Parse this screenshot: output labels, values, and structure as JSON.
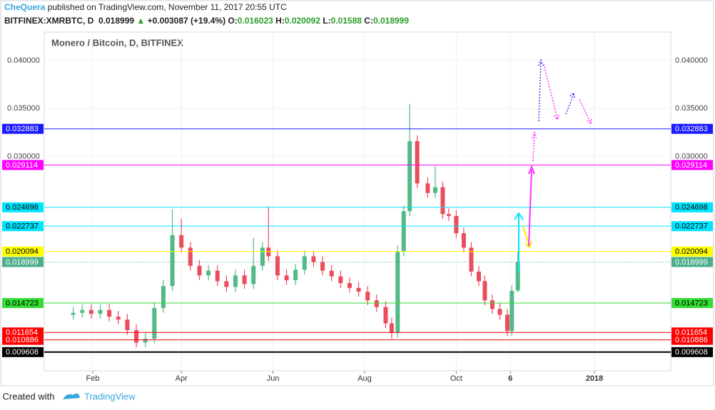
{
  "header": {
    "author": "CheQuera",
    "published": "published on TradingView.com, November 11, 2017 20:55 UTC",
    "symbol": "BITFINEX:XMRBTC, D",
    "change": "+0.003087 (+19.4%)",
    "o_label": "O:",
    "h_label": "H:",
    "l_label": "L:",
    "c_label": "C:"
  },
  "chart_data": {
    "type": "candlestick",
    "title": "Monero / Bitcoin, D, BITFINEX",
    "up_color": "#53b987",
    "down_color": "#eb4d5c",
    "x": [
      18,
      24,
      30,
      36,
      42,
      48,
      54,
      60,
      66,
      72,
      78,
      84,
      90,
      96,
      102,
      108,
      114,
      120,
      126,
      132,
      138,
      144,
      148,
      154,
      160,
      166,
      172,
      178,
      184,
      190,
      196,
      202,
      208,
      214,
      220,
      226,
      230,
      234,
      238,
      242,
      247,
      254,
      259,
      264,
      268,
      273,
      278,
      283,
      288,
      292,
      297,
      302,
      307,
      310,
      314
    ],
    "open": [
      0.0135,
      0.0137,
      0.014,
      0.0136,
      0.014,
      0.0133,
      0.013,
      0.0119,
      0.0106,
      0.011,
      0.0142,
      0.0165,
      0.0218,
      0.0205,
      0.0186,
      0.0176,
      0.0181,
      0.017,
      0.0164,
      0.0176,
      0.0167,
      0.0186,
      0.0205,
      0.0196,
      0.0176,
      0.0171,
      0.0182,
      0.0196,
      0.019,
      0.0181,
      0.0175,
      0.0168,
      0.0163,
      0.0159,
      0.015,
      0.0143,
      0.0126,
      0.0116,
      0.0201,
      0.0243,
      0.0316,
      0.0272,
      0.0262,
      0.0268,
      0.024,
      0.0238,
      0.022,
      0.0205,
      0.018,
      0.017,
      0.015,
      0.0141,
      0.0135,
      0.0118,
      0.016023
    ],
    "high": [
      0.0143,
      0.0146,
      0.0146,
      0.0146,
      0.0146,
      0.0139,
      0.0136,
      0.0125,
      0.0116,
      0.0148,
      0.0171,
      0.0245,
      0.0235,
      0.0211,
      0.0192,
      0.0187,
      0.0187,
      0.0176,
      0.0182,
      0.0182,
      0.0215,
      0.0211,
      0.0248,
      0.0202,
      0.0182,
      0.0188,
      0.0202,
      0.0202,
      0.0196,
      0.0187,
      0.0181,
      0.0174,
      0.0169,
      0.0165,
      0.0156,
      0.0149,
      0.0132,
      0.0207,
      0.0249,
      0.0355,
      0.0322,
      0.0278,
      0.029,
      0.0274,
      0.0246,
      0.0244,
      0.0226,
      0.0211,
      0.0186,
      0.0176,
      0.0156,
      0.0147,
      0.0141,
      0.0166,
      0.020092
    ],
    "low": [
      0.013,
      0.0132,
      0.0131,
      0.0131,
      0.0128,
      0.0125,
      0.0114,
      0.0101,
      0.0101,
      0.0105,
      0.0137,
      0.016,
      0.02,
      0.0181,
      0.0171,
      0.0171,
      0.0165,
      0.0159,
      0.0159,
      0.0162,
      0.0162,
      0.0181,
      0.0191,
      0.0171,
      0.0166,
      0.0166,
      0.0177,
      0.0185,
      0.0176,
      0.017,
      0.0163,
      0.0158,
      0.0154,
      0.0145,
      0.0138,
      0.0121,
      0.011,
      0.0111,
      0.0196,
      0.0238,
      0.0267,
      0.0257,
      0.0257,
      0.0235,
      0.0233,
      0.0215,
      0.02,
      0.0175,
      0.0165,
      0.0145,
      0.0136,
      0.013,
      0.0113,
      0.0113,
      0.01588
    ],
    "close": [
      0.0137,
      0.014,
      0.0136,
      0.014,
      0.0133,
      0.013,
      0.0119,
      0.0106,
      0.011,
      0.0142,
      0.0165,
      0.0218,
      0.0205,
      0.0186,
      0.0176,
      0.0181,
      0.017,
      0.0164,
      0.0176,
      0.0167,
      0.0186,
      0.0205,
      0.0196,
      0.0176,
      0.0171,
      0.0182,
      0.0196,
      0.019,
      0.0181,
      0.0175,
      0.0168,
      0.0163,
      0.0159,
      0.015,
      0.0143,
      0.0126,
      0.0116,
      0.0201,
      0.0243,
      0.0316,
      0.0272,
      0.0262,
      0.0268,
      0.024,
      0.0238,
      0.022,
      0.0205,
      0.018,
      0.017,
      0.015,
      0.0141,
      0.0135,
      0.0118,
      0.016,
      0.018999
    ],
    "xlim": [
      -1.3,
      415.8
    ],
    "ylim": [
      0.00766,
      0.04297
    ],
    "xticks": [
      {
        "value": 31,
        "label": "Feb"
      },
      {
        "value": 90,
        "label": "Apr"
      },
      {
        "value": 151,
        "label": "Jun"
      },
      {
        "value": 212,
        "label": "Aug"
      },
      {
        "value": 273,
        "label": "Oct"
      },
      {
        "value": 309,
        "label": "6"
      },
      {
        "value": 365,
        "label": "2018"
      }
    ],
    "yticks": [
      {
        "value": 0.04,
        "label": "0.040000"
      },
      {
        "value": 0.035,
        "label": "0.035000"
      },
      {
        "value": 0.03,
        "label": "0.030000"
      }
    ],
    "grid": true,
    "levels": [
      {
        "value": 0.032883,
        "color": "#1a1aff",
        "text_color": "#ffffff",
        "style": "solid"
      },
      {
        "value": 0.029114,
        "color": "#ff00ff",
        "text_color": "#ffffff",
        "style": "solid"
      },
      {
        "value": 0.024698,
        "color": "#00e5ff",
        "text_color": "#000000",
        "style": "solid"
      },
      {
        "value": 0.022737,
        "color": "#00e5ff",
        "text_color": "#000000",
        "style": "solid"
      },
      {
        "value": 0.020094,
        "color": "#ffff00",
        "text_color": "#000000",
        "style": "solid"
      },
      {
        "value": 0.018999,
        "color": "#4cae8a",
        "text_color": "#ffffff",
        "style": "dotted"
      },
      {
        "value": 0.014723,
        "color": "#33dd33",
        "text_color": "#000000",
        "style": "solid"
      },
      {
        "value": 0.011654,
        "color": "#ff0000",
        "text_color": "#ffffff",
        "style": "solid"
      },
      {
        "value": 0.010886,
        "color": "#ff0000",
        "text_color": "#ffffff",
        "style": "solid"
      },
      {
        "value": 0.009608,
        "color": "#000000",
        "text_color": "#ffffff",
        "style": "solid"
      }
    ]
  },
  "footer": {
    "created": "Created with",
    "brand": "TradingView"
  }
}
